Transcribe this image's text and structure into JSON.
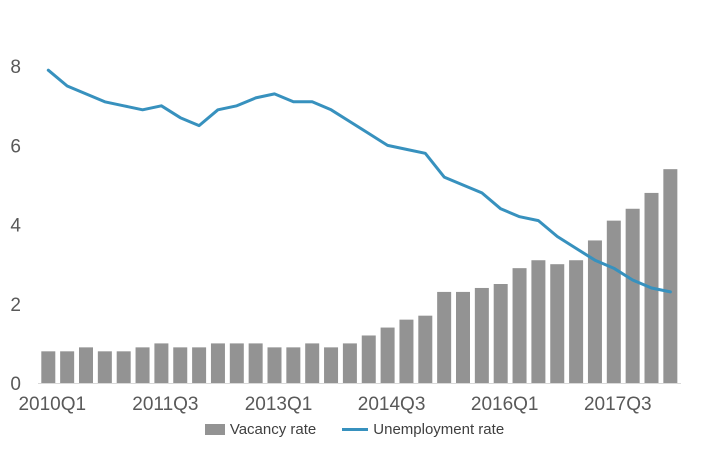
{
  "chart_data": {
    "type": "bar+line",
    "title": "",
    "xlabel": "",
    "ylabel": "",
    "categories": [
      "2010Q1",
      "2010Q2",
      "2010Q3",
      "2010Q4",
      "2011Q1",
      "2011Q2",
      "2011Q3",
      "2011Q4",
      "2012Q1",
      "2012Q2",
      "2012Q3",
      "2012Q4",
      "2013Q1",
      "2013Q2",
      "2013Q3",
      "2013Q4",
      "2014Q1",
      "2014Q2",
      "2014Q3",
      "2014Q4",
      "2015Q1",
      "2015Q2",
      "2015Q3",
      "2015Q4",
      "2016Q1",
      "2016Q2",
      "2016Q3",
      "2016Q4",
      "2017Q1",
      "2017Q2",
      "2017Q3",
      "2017Q4",
      "2018Q1",
      "2018Q2"
    ],
    "series": [
      {
        "name": "Vacancy rate",
        "type": "bar",
        "color": "#939393",
        "values": [
          0.8,
          0.8,
          0.9,
          0.8,
          0.8,
          0.9,
          1.0,
          0.9,
          0.9,
          1.0,
          1.0,
          1.0,
          0.9,
          0.9,
          1.0,
          0.9,
          1.0,
          1.2,
          1.4,
          1.6,
          1.7,
          2.3,
          2.3,
          2.4,
          2.5,
          2.9,
          3.1,
          3.0,
          3.1,
          3.6,
          4.1,
          4.4,
          4.8,
          5.4
        ]
      },
      {
        "name": "Unemployment rate",
        "type": "line",
        "color": "#3791be",
        "values": [
          7.9,
          7.5,
          7.3,
          7.1,
          7.0,
          6.9,
          7.0,
          6.7,
          6.5,
          6.9,
          7.0,
          7.2,
          7.3,
          7.1,
          7.1,
          6.9,
          6.6,
          6.3,
          6.0,
          5.9,
          5.8,
          5.2,
          5.0,
          4.8,
          4.4,
          4.2,
          4.1,
          3.7,
          3.4,
          3.1,
          2.9,
          2.6,
          2.4,
          2.3
        ]
      }
    ],
    "ylim": [
      0,
      8
    ],
    "y_ticks": [
      0,
      2,
      4,
      6,
      8
    ],
    "x_tick_labels": [
      "2010Q1",
      "2011Q3",
      "2013Q1",
      "2014Q3",
      "2016Q1",
      "2017Q3"
    ],
    "x_tick_indices": [
      0,
      6,
      12,
      18,
      24,
      30
    ],
    "grid": false,
    "legend_position": "bottom-center",
    "axis_label_color": "#595959",
    "baseline_color": "#d9d9d9"
  }
}
